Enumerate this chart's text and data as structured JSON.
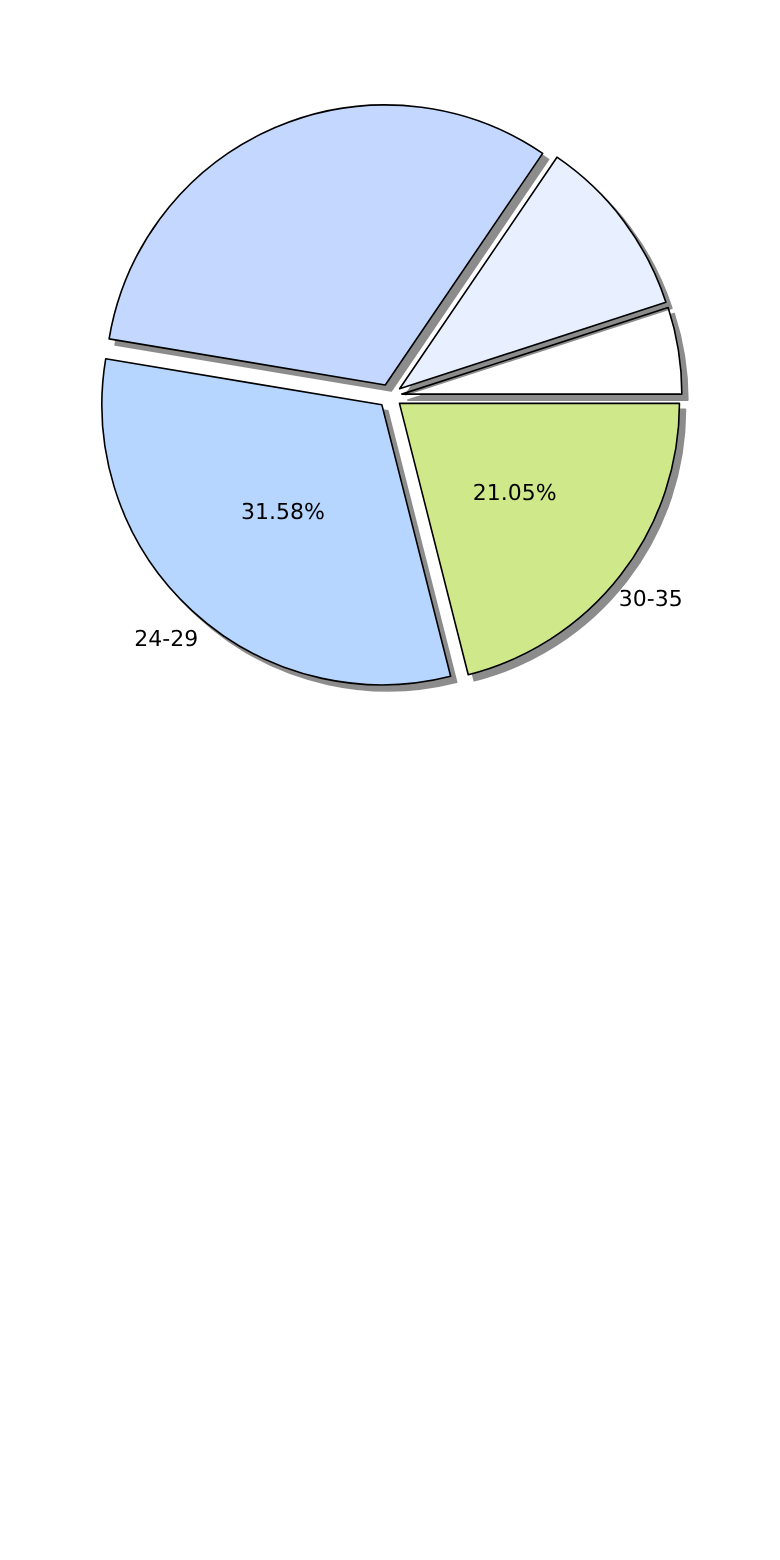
{
  "chart_data": {
    "type": "pie",
    "categories": [
      null,
      null,
      null,
      "24-29",
      "30-35"
    ],
    "values": [
      5.0,
      10.5,
      31.87,
      31.58,
      21.05
    ],
    "colors": [
      "#ffffff",
      "#e8f0ff",
      "#c4d8ff",
      "#b7d6ff",
      "#cfe98a"
    ],
    "value_labels": [
      null,
      null,
      null,
      "31.58%",
      "21.05%"
    ],
    "legend": false
  }
}
